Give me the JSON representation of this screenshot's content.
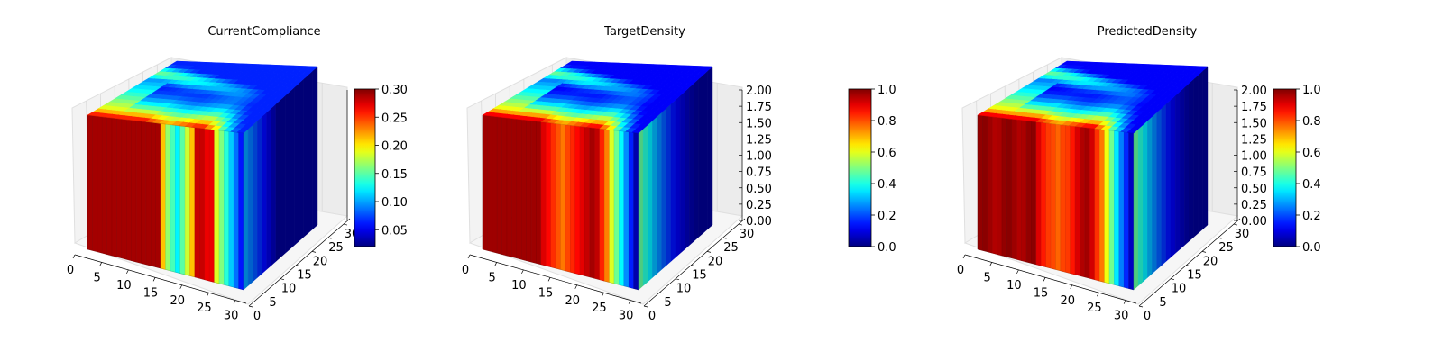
{
  "colors": {
    "background": "#ffffff",
    "axis_line": "#000000",
    "pane_face": "#f2f2f2",
    "grid": "#d8d8d8"
  },
  "colormap": "jet",
  "chart_data": [
    {
      "type": "heatmap",
      "subtype": "3d-voxel",
      "title": "CurrentCompliance",
      "field": "compliance",
      "x_ticks": [
        "0",
        "5",
        "10",
        "15",
        "20",
        "25",
        "30"
      ],
      "y_ticks": [
        "0",
        "5",
        "10",
        "15",
        "20",
        "25",
        "30"
      ],
      "z_ticks": [],
      "xlim": [
        0,
        32
      ],
      "ylim": [
        0,
        32
      ],
      "zlim": [
        0,
        2
      ],
      "colorbar": {
        "ticks": [
          "0.05",
          "0.10",
          "0.15",
          "0.20",
          "0.25",
          "0.30"
        ],
        "tick_values": [
          0.05,
          0.1,
          0.15,
          0.2,
          0.25,
          0.3
        ],
        "vmin": 0.02,
        "vmax": 0.3
      },
      "grid": true
    },
    {
      "type": "heatmap",
      "subtype": "3d-voxel",
      "title": "TargetDensity",
      "field": "density",
      "x_ticks": [
        "0",
        "5",
        "10",
        "15",
        "20",
        "25",
        "30"
      ],
      "y_ticks": [
        "0",
        "5",
        "10",
        "15",
        "20",
        "25",
        "30"
      ],
      "z_ticks": [
        "0.00",
        "0.25",
        "0.50",
        "0.75",
        "1.00",
        "1.25",
        "1.50",
        "1.75",
        "2.00"
      ],
      "xlim": [
        0,
        32
      ],
      "ylim": [
        0,
        32
      ],
      "zlim": [
        0,
        2
      ],
      "colorbar": {
        "ticks": [
          "0.0",
          "0.2",
          "0.4",
          "0.6",
          "0.8",
          "1.0"
        ],
        "tick_values": [
          0,
          0.2,
          0.4,
          0.6,
          0.8,
          1.0
        ],
        "vmin": 0,
        "vmax": 1
      },
      "grid": true
    },
    {
      "type": "heatmap",
      "subtype": "3d-voxel",
      "title": "PredictedDensity",
      "field": "density",
      "x_ticks": [
        "0",
        "5",
        "10",
        "15",
        "20",
        "25",
        "30"
      ],
      "y_ticks": [
        "0",
        "5",
        "10",
        "15",
        "20",
        "25",
        "30"
      ],
      "z_ticks": [
        "0.00",
        "0.25",
        "0.50",
        "0.75",
        "1.00",
        "1.25",
        "1.50",
        "1.75",
        "2.00"
      ],
      "xlim": [
        0,
        32
      ],
      "ylim": [
        0,
        32
      ],
      "zlim": [
        0,
        2
      ],
      "colorbar": {
        "ticks": [
          "0.0",
          "0.2",
          "0.4",
          "0.6",
          "0.8",
          "1.0"
        ],
        "tick_values": [
          0,
          0.2,
          0.4,
          0.6,
          0.8,
          1.0
        ],
        "vmin": 0,
        "vmax": 1
      },
      "grid": true
    }
  ]
}
